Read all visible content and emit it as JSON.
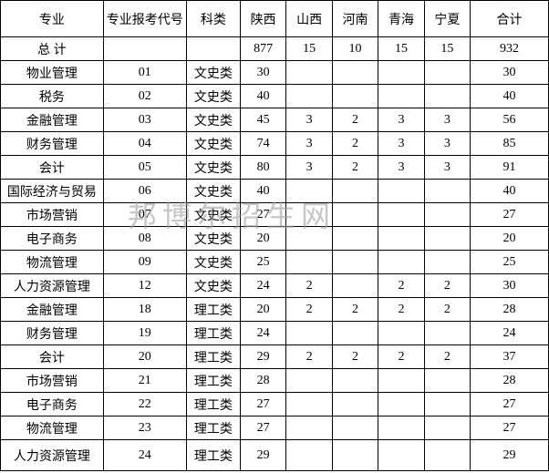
{
  "watermark": "邦博尔招生网",
  "table": {
    "columns": [
      "专业",
      "专业报考代号",
      "科类",
      "陕西",
      "山西",
      "河南",
      "青海",
      "宁夏",
      "合计"
    ],
    "rows": [
      [
        "总 计",
        "",
        "",
        "877",
        "15",
        "10",
        "15",
        "15",
        "932"
      ],
      [
        "物业管理",
        "01",
        "文史类",
        "30",
        "",
        "",
        "",
        "",
        "30"
      ],
      [
        "税务",
        "02",
        "文史类",
        "40",
        "",
        "",
        "",
        "",
        "40"
      ],
      [
        "金融管理",
        "03",
        "文史类",
        "45",
        "3",
        "2",
        "3",
        "3",
        "56"
      ],
      [
        "财务管理",
        "04",
        "文史类",
        "74",
        "3",
        "2",
        "3",
        "3",
        "85"
      ],
      [
        "会计",
        "05",
        "文史类",
        "80",
        "3",
        "2",
        "3",
        "3",
        "91"
      ],
      [
        "国际经济与贸易",
        "06",
        "文史类",
        "40",
        "",
        "",
        "",
        "",
        "40"
      ],
      [
        "市场营销",
        "07",
        "文史类",
        "27",
        "",
        "",
        "",
        "",
        "27"
      ],
      [
        "电子商务",
        "08",
        "文史类",
        "20",
        "",
        "",
        "",
        "",
        "20"
      ],
      [
        "物流管理",
        "09",
        "文史类",
        "25",
        "",
        "",
        "",
        "",
        "25"
      ],
      [
        "人力资源管理",
        "12",
        "文史类",
        "24",
        "2",
        "",
        "2",
        "2",
        "30"
      ],
      [
        "金融管理",
        "18",
        "理工类",
        "20",
        "2",
        "2",
        "2",
        "2",
        "28"
      ],
      [
        "财务管理",
        "19",
        "理工类",
        "24",
        "",
        "",
        "",
        "",
        "24"
      ],
      [
        "会计",
        "20",
        "理工类",
        "29",
        "2",
        "2",
        "2",
        "2",
        "37"
      ],
      [
        "市场营销",
        "21",
        "理工类",
        "28",
        "",
        "",
        "",
        "",
        "28"
      ],
      [
        "电子商务",
        "22",
        "理工类",
        "27",
        "",
        "",
        "",
        "",
        "27"
      ],
      [
        "物流管理",
        "23",
        "理工类",
        "27",
        "",
        "",
        "",
        "",
        "27"
      ],
      [
        "人力资源管理",
        "24",
        "理工类",
        "29",
        "",
        "",
        "",
        "",
        "29"
      ]
    ]
  }
}
